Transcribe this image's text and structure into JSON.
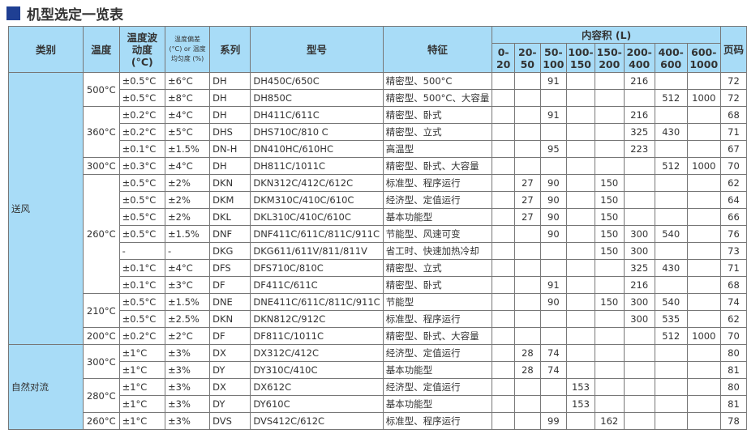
{
  "title": "机型选定一览表",
  "colors": {
    "header_bg": "#a8dcf7",
    "title_square": "#1f3f93"
  },
  "headers": {
    "category": "类别",
    "temp": "温度",
    "fluct": "温度波动度(°C)",
    "dev": "温度偏差 (°C) or 温度均匀度 (%)",
    "series": "系列",
    "model": "型号",
    "feature": "特征",
    "volume": "内容积 (L)",
    "page": "页码",
    "volume_ranges": [
      "0-20",
      "20-50",
      "50-100",
      "100-150",
      "150-200",
      "200-400",
      "400-600",
      "600-1000"
    ]
  },
  "categories": [
    {
      "label": "送风",
      "rows": 16
    },
    {
      "label": "自然对流",
      "rows": 5
    }
  ],
  "temp_groups": [
    {
      "label": "500°C",
      "rows": 2
    },
    {
      "label": "360°C",
      "rows": 3
    },
    {
      "label": "300°C",
      "rows": 1
    },
    {
      "label": "260°C",
      "rows": 7
    },
    {
      "label": "210°C",
      "rows": 2
    },
    {
      "label": "200°C",
      "rows": 1
    },
    {
      "label": "300°C",
      "rows": 2
    },
    {
      "label": "280°C",
      "rows": 2
    },
    {
      "label": "260°C",
      "rows": 1
    }
  ],
  "rows": [
    {
      "fluct": "±0.5°C",
      "dev": "±6°C",
      "series": "DH",
      "model": "DH450C/650C",
      "feature": "精密型、500°C",
      "vol": [
        "",
        "",
        "91",
        "",
        "",
        "216",
        "",
        ""
      ],
      "page": "72"
    },
    {
      "fluct": "±0.5°C",
      "dev": "±8°C",
      "series": "DH",
      "model": "DH850C",
      "feature": "精密型、500°C、大容量",
      "vol": [
        "",
        "",
        "",
        "",
        "",
        "",
        "512",
        "1000"
      ],
      "page": "72"
    },
    {
      "fluct": "±0.2°C",
      "dev": "±4°C",
      "series": "DH",
      "model": "DH411C/611C",
      "feature": "精密型、卧式",
      "vol": [
        "",
        "",
        "91",
        "",
        "",
        "216",
        "",
        ""
      ],
      "page": "68"
    },
    {
      "fluct": "±0.2°C",
      "dev": "±5°C",
      "series": "DHS",
      "model": "DHS710C/810 C",
      "feature": "精密型、立式",
      "vol": [
        "",
        "",
        "",
        "",
        "",
        "325",
        "430",
        ""
      ],
      "page": "71"
    },
    {
      "fluct": "±0.1°C",
      "dev": "±1.5%",
      "series": "DN-H",
      "model": "DN410HC/610HC",
      "feature": "高温型",
      "vol": [
        "",
        "",
        "95",
        "",
        "",
        "223",
        "",
        ""
      ],
      "page": "67"
    },
    {
      "fluct": "±0.3°C",
      "dev": "±4°C",
      "series": "DH",
      "model": "DH811C/1011C",
      "feature": "精密型、卧式、大容量",
      "vol": [
        "",
        "",
        "",
        "",
        "",
        "",
        "512",
        "1000"
      ],
      "page": "70"
    },
    {
      "fluct": "±0.5°C",
      "dev": "±2%",
      "series": "DKN",
      "model": "DKN312C/412C/612C",
      "feature": "标准型、程序运行",
      "vol": [
        "",
        "27",
        "90",
        "",
        "150",
        "",
        "",
        ""
      ],
      "page": "62"
    },
    {
      "fluct": "±0.5°C",
      "dev": "±2%",
      "series": "DKM",
      "model": "DKM310C/410C/610C",
      "feature": "经济型、定值运行",
      "vol": [
        "",
        "27",
        "90",
        "",
        "150",
        "",
        "",
        ""
      ],
      "page": "64"
    },
    {
      "fluct": "±0.5°C",
      "dev": "±2%",
      "series": "DKL",
      "model": "DKL310C/410C/610C",
      "feature": "基本功能型",
      "vol": [
        "",
        "27",
        "90",
        "",
        "150",
        "",
        "",
        ""
      ],
      "page": "66"
    },
    {
      "fluct": "±0.5°C",
      "dev": "±1.5%",
      "series": "DNF",
      "model": "DNF411C/611C/811C/911C",
      "feature": "节能型、风速可变",
      "vol": [
        "",
        "",
        "90",
        "",
        "150",
        "300",
        "540",
        ""
      ],
      "page": "76"
    },
    {
      "fluct": "-",
      "dev": "-",
      "series": "DKG",
      "model": "DKG611/611V/811/811V",
      "feature": "省工时、快速加热冷却",
      "vol": [
        "",
        "",
        "",
        "",
        "150",
        "300",
        "",
        ""
      ],
      "page": "73"
    },
    {
      "fluct": "±0.1°C",
      "dev": "±4°C",
      "series": "DFS",
      "model": "DFS710C/810C",
      "feature": "精密型、立式",
      "vol": [
        "",
        "",
        "",
        "",
        "",
        "325",
        "430",
        ""
      ],
      "page": "71"
    },
    {
      "fluct": "±0.1°C",
      "dev": "±3°C",
      "series": "DF",
      "model": "DF411C/611C",
      "feature": "精密型、卧式",
      "vol": [
        "",
        "",
        "91",
        "",
        "",
        "216",
        "",
        ""
      ],
      "page": "68"
    },
    {
      "fluct": "±0.5°C",
      "dev": "±1.5%",
      "series": "DNE",
      "model": "DNE411C/611C/811C/911C",
      "feature": "节能型",
      "vol": [
        "",
        "",
        "90",
        "",
        "150",
        "300",
        "540",
        ""
      ],
      "page": "74"
    },
    {
      "fluct": "±0.5°C",
      "dev": "±2.5%",
      "series": "DKN",
      "model": "DKN812C/912C",
      "feature": "标准型、程序运行",
      "vol": [
        "",
        "",
        "",
        "",
        "",
        "300",
        "535",
        ""
      ],
      "page": "62"
    },
    {
      "fluct": "±0.2°C",
      "dev": "±2°C",
      "series": "DF",
      "model": "DF811C/1011C",
      "feature": "精密型、卧式、大容量",
      "vol": [
        "",
        "",
        "",
        "",
        "",
        "",
        "512",
        "1000"
      ],
      "page": "70"
    },
    {
      "fluct": "±1°C",
      "dev": "±3%",
      "series": "DX",
      "model": "DX312C/412C",
      "feature": "经济型、定值运行",
      "vol": [
        "",
        "28",
        "74",
        "",
        "",
        "",
        "",
        ""
      ],
      "page": "80"
    },
    {
      "fluct": "±1°C",
      "dev": "±3%",
      "series": "DY",
      "model": "DY310C/410C",
      "feature": "基本功能型",
      "vol": [
        "",
        "28",
        "74",
        "",
        "",
        "",
        "",
        ""
      ],
      "page": "81"
    },
    {
      "fluct": "±1°C",
      "dev": "±3%",
      "series": "DX",
      "model": "DX612C",
      "feature": "经济型、定值运行",
      "vol": [
        "",
        "",
        "",
        "153",
        "",
        "",
        "",
        ""
      ],
      "page": "80"
    },
    {
      "fluct": "±1°C",
      "dev": "±3%",
      "series": "DY",
      "model": "DY610C",
      "feature": "基本功能型",
      "vol": [
        "",
        "",
        "",
        "153",
        "",
        "",
        "",
        ""
      ],
      "page": "81"
    },
    {
      "fluct": "±1°C",
      "dev": "±3%",
      "series": "DVS",
      "model": "DVS412C/612C",
      "feature": "标准型、程序运行",
      "vol": [
        "",
        "",
        "99",
        "",
        "162",
        "",
        "",
        ""
      ],
      "page": "78"
    }
  ]
}
